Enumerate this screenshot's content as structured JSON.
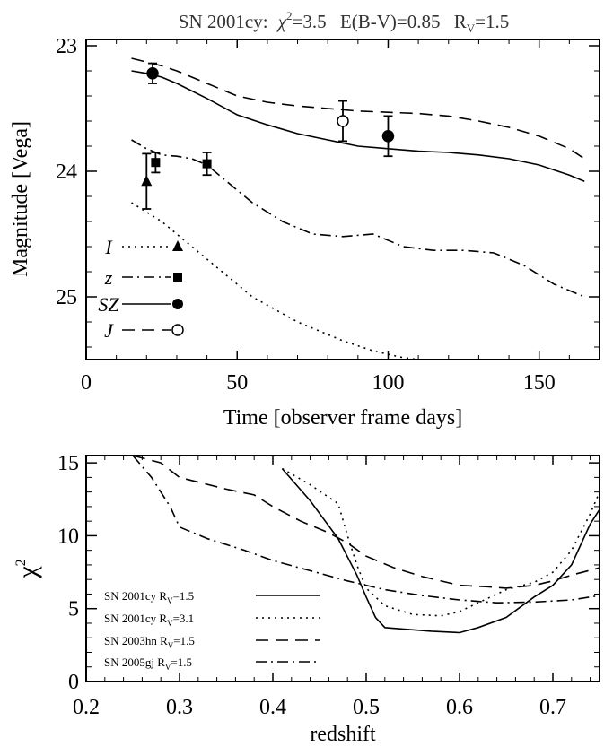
{
  "chart_data": [
    {
      "type": "line",
      "title": "SN 2001cy: χ²=3.5 E(B-V)=0.85 R_V=1.5",
      "title_parts": {
        "name": "SN 2001cy:",
        "chi": "χ",
        "chi_exp": "2",
        "chi_val": "=3.5",
        "ebv": "E(B-V)=0.85",
        "rv": "R",
        "rv_sub": "V",
        "rv_val": "=1.5"
      },
      "xlabel": "Time [observer frame days]",
      "ylabel": "Magnitude [Vega]",
      "xlim": [
        0,
        170
      ],
      "ylim": [
        25.5,
        22.95
      ],
      "y_inverted": true,
      "xticks": [
        "0",
        "50",
        "100",
        "150"
      ],
      "yticks": [
        "23",
        "24",
        "25"
      ],
      "legend": {
        "position": "bottom-left",
        "entries": [
          {
            "label": "I",
            "line": "dotted",
            "marker": "filled-triangle"
          },
          {
            "label": "z",
            "line": "dash-dot",
            "marker": "filled-square"
          },
          {
            "label": "SZ",
            "line": "solid",
            "marker": "filled-circle"
          },
          {
            "label": "J",
            "line": "dashed",
            "marker": "open-circle"
          }
        ]
      },
      "series": [
        {
          "name": "I",
          "style": "dotted",
          "x": [
            15,
            25,
            40,
            55,
            70,
            85,
            95,
            104,
            110
          ],
          "y": [
            24.25,
            24.4,
            24.7,
            25.0,
            25.2,
            25.35,
            25.43,
            25.48,
            25.5
          ]
        },
        {
          "name": "z",
          "style": "dash-dot",
          "x": [
            15,
            20,
            25,
            30,
            35,
            40,
            45,
            55,
            65,
            75,
            85,
            95,
            105,
            115,
            125,
            135,
            145,
            155,
            165
          ],
          "y": [
            23.75,
            23.82,
            23.87,
            23.88,
            23.9,
            23.95,
            24.05,
            24.25,
            24.4,
            24.5,
            24.52,
            24.5,
            24.6,
            24.63,
            24.63,
            24.65,
            24.75,
            24.9,
            25.0
          ],
          "points": [
            {
              "x": 23,
              "y": 23.93,
              "err": 0.08
            },
            {
              "x": 40,
              "y": 23.94,
              "err": 0.09
            }
          ]
        },
        {
          "name": "SZ",
          "style": "solid",
          "x": [
            15,
            20,
            25,
            30,
            40,
            50,
            60,
            70,
            80,
            90,
            100,
            110,
            120,
            130,
            140,
            150,
            160,
            165
          ],
          "y": [
            23.2,
            23.22,
            23.25,
            23.3,
            23.42,
            23.55,
            23.63,
            23.7,
            23.75,
            23.8,
            23.82,
            23.84,
            23.85,
            23.87,
            23.9,
            23.95,
            24.03,
            24.08
          ],
          "points": [
            {
              "x": 22,
              "y": 23.22,
              "err": 0.08
            },
            {
              "x": 100,
              "y": 23.72,
              "err": 0.16
            }
          ]
        },
        {
          "name": "J",
          "style": "dashed",
          "x": [
            15,
            20,
            25,
            30,
            40,
            50,
            60,
            70,
            80,
            90,
            100,
            110,
            120,
            130,
            140,
            150,
            160,
            165
          ],
          "y": [
            23.1,
            23.13,
            23.16,
            23.2,
            23.3,
            23.4,
            23.45,
            23.48,
            23.5,
            23.52,
            23.53,
            23.54,
            23.56,
            23.6,
            23.65,
            23.72,
            23.82,
            23.9
          ],
          "points": [
            {
              "x": 85,
              "y": 23.6,
              "err": 0.16,
              "open": true
            }
          ]
        },
        {
          "name": "I-points",
          "style": "none",
          "points": [
            {
              "x": 20,
              "y": 24.08,
              "err": 0.22,
              "marker": "triangle"
            }
          ]
        }
      ]
    },
    {
      "type": "line",
      "xlabel": "redshift",
      "ylabel": "χ²",
      "ylabel_parts": {
        "base": "χ",
        "exp": "2"
      },
      "xlim": [
        0.2,
        0.75
      ],
      "ylim": [
        0,
        15.5
      ],
      "xticks": [
        "0.2",
        "0.3",
        "0.4",
        "0.5",
        "0.6",
        "0.7"
      ],
      "yticks": [
        "0",
        "5",
        "10",
        "15"
      ],
      "legend": {
        "position": "bottom-left",
        "entries": [
          {
            "name": "SN 2001cy",
            "rv_label": "R",
            "rv_sub": "V",
            "rv_val": "=1.5",
            "line": "solid"
          },
          {
            "name": "SN 2001cy",
            "rv_label": "R",
            "rv_sub": "V",
            "rv_val": "=3.1",
            "line": "dotted"
          },
          {
            "name": "SN 2003hn",
            "rv_label": "R",
            "rv_sub": "V",
            "rv_val": "=1.5",
            "line": "dashed"
          },
          {
            "name": "SN 2005gj",
            "rv_label": "R",
            "rv_sub": "V",
            "rv_val": "=1.5",
            "line": "dash-dot"
          }
        ]
      },
      "series": [
        {
          "name": "SN 2001cy R_V=1.5",
          "style": "solid",
          "x": [
            0.41,
            0.44,
            0.47,
            0.49,
            0.5,
            0.51,
            0.52,
            0.53,
            0.55,
            0.57,
            0.6,
            0.62,
            0.65,
            0.68,
            0.7,
            0.72,
            0.74,
            0.75
          ],
          "y": [
            14.6,
            12.4,
            9.8,
            7.3,
            5.8,
            4.4,
            3.7,
            3.65,
            3.55,
            3.45,
            3.35,
            3.7,
            4.4,
            5.8,
            6.6,
            8.0,
            10.8,
            11.8
          ]
        },
        {
          "name": "SN 2001cy R_V=3.1",
          "style": "dotted",
          "x": [
            0.41,
            0.44,
            0.47,
            0.48,
            0.49,
            0.5,
            0.52,
            0.55,
            0.58,
            0.6,
            0.62,
            0.65,
            0.68,
            0.7,
            0.72,
            0.74,
            0.75
          ],
          "y": [
            14.6,
            13.5,
            12.2,
            10.0,
            8.0,
            6.4,
            5.2,
            4.6,
            4.5,
            4.8,
            5.4,
            6.3,
            6.8,
            7.5,
            9.0,
            11.5,
            13.0
          ]
        },
        {
          "name": "SN 2003hn R_V=1.5",
          "style": "dashed",
          "x": [
            0.25,
            0.28,
            0.3,
            0.35,
            0.38,
            0.4,
            0.43,
            0.46,
            0.48,
            0.5,
            0.53,
            0.56,
            0.6,
            0.63,
            0.65,
            0.68,
            0.7,
            0.72,
            0.75
          ],
          "y": [
            15.5,
            15.0,
            14.0,
            13.2,
            12.8,
            12.0,
            11.0,
            10.2,
            9.5,
            8.6,
            7.8,
            7.2,
            6.6,
            6.5,
            6.4,
            6.6,
            6.9,
            7.3,
            7.8
          ]
        },
        {
          "name": "SN 2005gj R_V=1.5",
          "style": "dash-dot",
          "x": [
            0.25,
            0.27,
            0.29,
            0.3,
            0.33,
            0.37,
            0.4,
            0.44,
            0.48,
            0.52,
            0.56,
            0.6,
            0.64,
            0.68,
            0.72,
            0.75
          ],
          "y": [
            15.5,
            14.0,
            12.0,
            10.6,
            9.8,
            9.0,
            8.3,
            7.6,
            6.9,
            6.3,
            5.9,
            5.6,
            5.4,
            5.45,
            5.6,
            5.9
          ]
        }
      ]
    }
  ]
}
